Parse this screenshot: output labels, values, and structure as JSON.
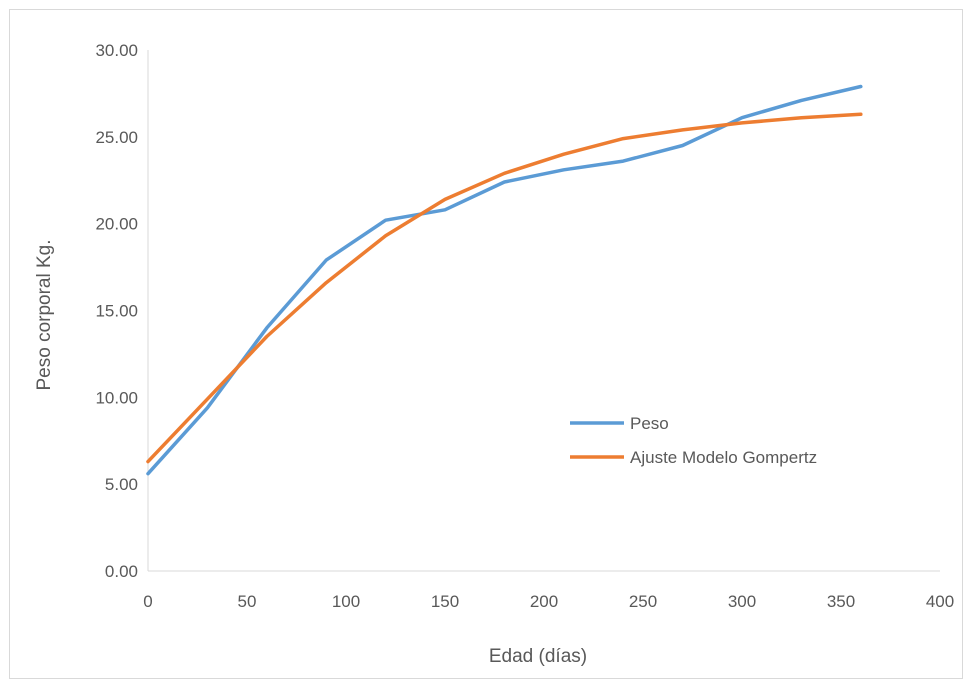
{
  "chart_data": {
    "type": "line",
    "title": "",
    "xlabel": "Edad (días)",
    "ylabel": "Peso corporal Kg.",
    "xlim": [
      0,
      400
    ],
    "ylim": [
      0,
      30
    ],
    "x_ticks": [
      "0",
      "50",
      "100",
      "150",
      "200",
      "250",
      "300",
      "350",
      "400"
    ],
    "y_ticks": [
      "0.00",
      "5.00",
      "10.00",
      "15.00",
      "20.00",
      "25.00",
      "30.00"
    ],
    "grid": false,
    "legend_position": "right-middle",
    "series": [
      {
        "name": "Peso",
        "color": "#5b9bd5",
        "x": [
          0,
          30,
          60,
          90,
          120,
          150,
          180,
          210,
          240,
          270,
          300,
          330,
          360
        ],
        "y": [
          5.6,
          9.4,
          14.0,
          17.9,
          20.2,
          20.8,
          22.4,
          23.1,
          23.6,
          24.5,
          26.1,
          27.1,
          27.9
        ]
      },
      {
        "name": "Ajuste Modelo Gompertz",
        "color": "#ed7d31",
        "x": [
          0,
          30,
          60,
          90,
          120,
          150,
          180,
          210,
          240,
          270,
          300,
          330,
          360
        ],
        "y": [
          6.3,
          9.9,
          13.5,
          16.6,
          19.3,
          21.4,
          22.9,
          24.0,
          24.9,
          25.4,
          25.8,
          26.1,
          26.3
        ]
      }
    ]
  }
}
